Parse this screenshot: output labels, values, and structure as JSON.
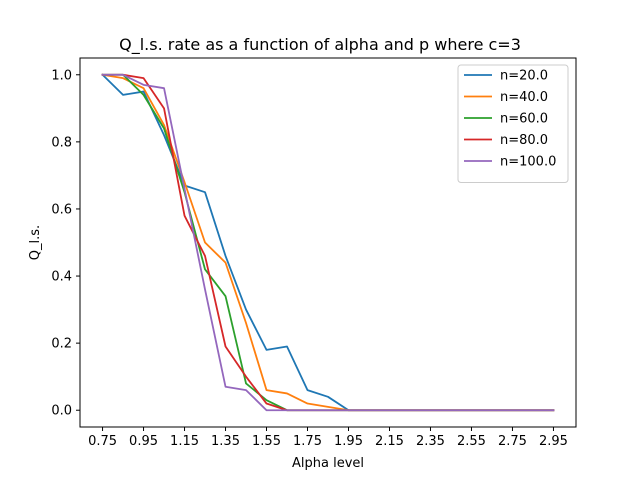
{
  "chart_data": {
    "type": "line",
    "title": "Q_l.s. rate as a function of alpha and p where c=3",
    "xlabel": "Alpha level",
    "ylabel": "Q_l.s.",
    "xlim": [
      0.64,
      3.06
    ],
    "ylim": [
      -0.05,
      1.05
    ],
    "x_ticks": [
      "0.75",
      "0.95",
      "1.15",
      "1.35",
      "1.55",
      "1.75",
      "1.95",
      "2.15",
      "2.35",
      "2.55",
      "2.75",
      "2.95"
    ],
    "y_ticks": [
      "0.0",
      "0.2",
      "0.4",
      "0.6",
      "0.8",
      "1.0"
    ],
    "grid": false,
    "legend_position": "top-right",
    "x": [
      0.75,
      0.85,
      0.95,
      1.05,
      1.15,
      1.25,
      1.35,
      1.45,
      1.55,
      1.65,
      1.75,
      1.85,
      1.95,
      2.05,
      2.15,
      2.25,
      2.35,
      2.45,
      2.55,
      2.65,
      2.75,
      2.85,
      2.95
    ],
    "series": [
      {
        "name": "n=20.0",
        "color": "#1f77b4",
        "values": [
          1.0,
          0.94,
          0.95,
          0.82,
          0.67,
          0.65,
          0.46,
          0.3,
          0.18,
          0.19,
          0.06,
          0.04,
          0.0,
          0.0,
          0.0,
          0.0,
          0.0,
          0.0,
          0.0,
          0.0,
          0.0,
          0.0,
          0.0
        ]
      },
      {
        "name": "n=40.0",
        "color": "#ff7f0e",
        "values": [
          1.0,
          0.99,
          0.96,
          0.85,
          0.68,
          0.5,
          0.44,
          0.26,
          0.06,
          0.05,
          0.02,
          0.01,
          0.0,
          0.0,
          0.0,
          0.0,
          0.0,
          0.0,
          0.0,
          0.0,
          0.0,
          0.0,
          0.0
        ]
      },
      {
        "name": "n=60.0",
        "color": "#2ca02c",
        "values": [
          1.0,
          1.0,
          0.94,
          0.84,
          0.65,
          0.42,
          0.34,
          0.08,
          0.03,
          0.0,
          0.0,
          0.0,
          0.0,
          0.0,
          0.0,
          0.0,
          0.0,
          0.0,
          0.0,
          0.0,
          0.0,
          0.0,
          0.0
        ]
      },
      {
        "name": "n=80.0",
        "color": "#d62728",
        "values": [
          1.0,
          1.0,
          0.99,
          0.9,
          0.58,
          0.46,
          0.19,
          0.1,
          0.02,
          0.0,
          0.0,
          0.0,
          0.0,
          0.0,
          0.0,
          0.0,
          0.0,
          0.0,
          0.0,
          0.0,
          0.0,
          0.0,
          0.0
        ]
      },
      {
        "name": "n=100.0",
        "color": "#9467bd",
        "values": [
          1.0,
          1.0,
          0.97,
          0.96,
          0.66,
          0.36,
          0.07,
          0.06,
          0.0,
          0.0,
          0.0,
          0.0,
          0.0,
          0.0,
          0.0,
          0.0,
          0.0,
          0.0,
          0.0,
          0.0,
          0.0,
          0.0,
          0.0
        ]
      }
    ]
  }
}
